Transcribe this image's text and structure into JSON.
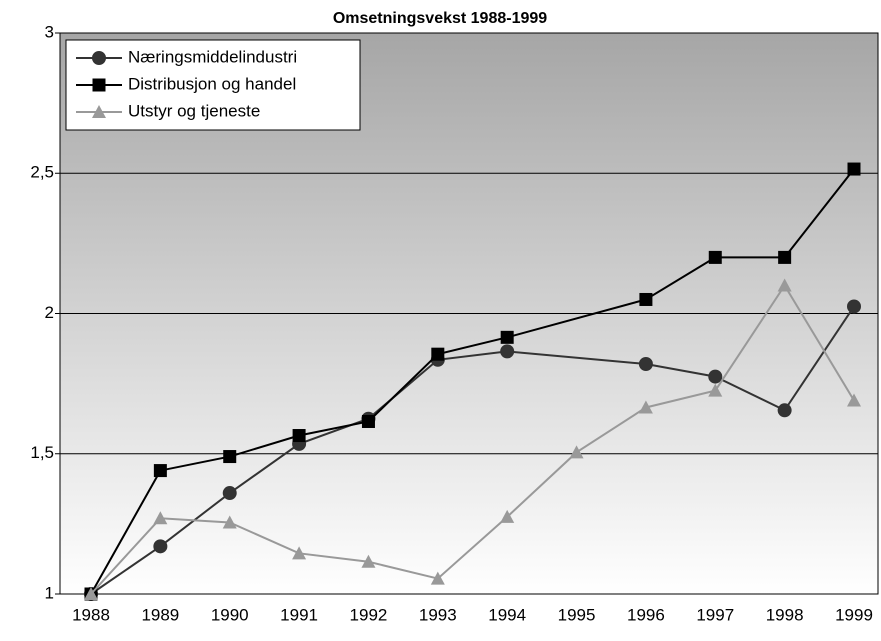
{
  "chart_data": {
    "type": "line",
    "title": "Omsetningsvekst 1988-1999",
    "categories": [
      "1988",
      "1989",
      "1990",
      "1991",
      "1992",
      "1993",
      "1994",
      "1995",
      "1996",
      "1997",
      "1998",
      "1999"
    ],
    "series": [
      {
        "name": "Næringsmiddelindustri",
        "color": "#333333",
        "marker": "circle",
        "values": [
          1.0,
          1.17,
          1.36,
          1.535,
          1.625,
          1.835,
          1.865,
          null,
          1.82,
          1.775,
          1.655,
          2.025
        ]
      },
      {
        "name": "Distribusjon og handel",
        "color": "#000000",
        "marker": "square",
        "values": [
          1.0,
          1.44,
          1.49,
          1.565,
          1.615,
          1.855,
          1.915,
          null,
          2.05,
          2.2,
          2.2,
          2.515
        ]
      },
      {
        "name": "Utstyr og tjeneste",
        "color": "#999999",
        "marker": "triangle",
        "values": [
          1.0,
          1.27,
          1.255,
          1.145,
          1.115,
          1.055,
          1.275,
          1.505,
          1.665,
          1.725,
          2.1,
          1.69
        ]
      }
    ],
    "ylim": [
      1,
      3
    ],
    "yticks": [
      1,
      {
        "value": 1.5,
        "label": "1,5"
      },
      2,
      {
        "value": 2.5,
        "label": "2,5"
      },
      3
    ],
    "grid": true,
    "connect_gaps": true,
    "legend": "upper left"
  }
}
